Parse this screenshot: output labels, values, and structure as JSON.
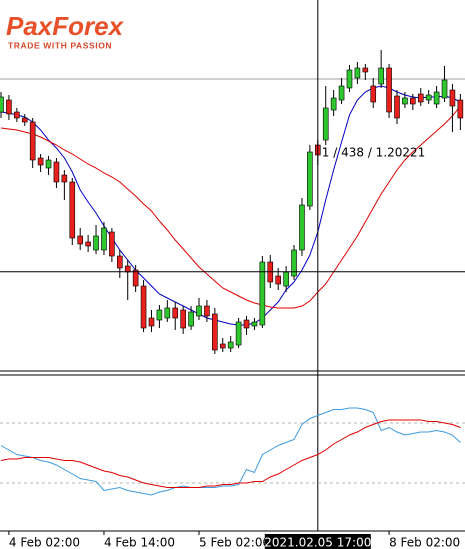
{
  "logo": {
    "text": "PaxForex",
    "tagline": "TRADE WITH PASSION"
  },
  "chart_data": [
    {
      "type": "candlestick",
      "categories": [
        null,
        "4 Feb 02:00",
        null,
        null,
        null,
        null,
        null,
        null,
        null,
        null,
        null,
        null,
        null,
        "4 Feb 14:00",
        null,
        null,
        null,
        null,
        null,
        null,
        null,
        null,
        null,
        null,
        null,
        "5 Feb 02:00",
        null,
        null,
        null,
        null,
        null,
        null,
        null,
        null,
        null,
        null,
        null,
        null,
        null,
        null,
        "2021.02.05 17:00",
        null,
        null,
        null,
        null,
        null,
        null,
        null,
        null,
        "8 Feb 02:00",
        null,
        null,
        null,
        null,
        null,
        null,
        null,
        null,
        null
      ],
      "open": [
        1.2102,
        1.2108,
        1.2102,
        1.2099,
        1.2097,
        1.2079,
        1.2074,
        1.2077,
        1.20705,
        1.2067,
        1.204,
        1.2037,
        1.2033,
        1.2033,
        1.2042,
        1.203,
        1.2025,
        1.2023,
        1.2015,
        1.1999,
        1.1998,
        1.1999,
        1.2004,
        1.2003,
        1.1995,
        1.2,
        1.2005,
        1.2001,
        1.1986,
        1.1984,
        1.19855,
        1.1998,
        1.1995,
        1.19955,
        1.2027,
        1.202,
        1.2015,
        1.202,
        1.2033,
        1.2055,
        1.20855,
        1.2088,
        1.2103,
        1.2108,
        1.2114,
        1.2119,
        1.2124,
        1.2115,
        1.2116,
        1.2124,
        1.211,
        1.2106,
        1.2109,
        1.2111,
        1.2108,
        1.2106,
        1.2109,
        1.2113,
        1.2108
      ],
      "high": [
        1.2112,
        1.21105,
        1.2104,
        1.2101,
        1.2099,
        1.2081,
        1.208,
        1.2079,
        1.2073,
        1.2069,
        1.2044,
        1.20405,
        1.20455,
        1.2047,
        1.2044,
        1.2033,
        1.2028,
        1.20255,
        1.2018,
        1.2003,
        1.20055,
        1.2008,
        1.2007,
        1.2005,
        1.2005,
        1.2009,
        1.2008,
        1.2004,
        1.1989,
        1.199,
        1.1999,
        1.2,
        1.1999,
        1.203,
        1.20305,
        1.2024,
        1.2025,
        1.20355,
        1.2059,
        1.20855,
        1.2088,
        1.2115,
        1.2113,
        1.2119,
        1.21255,
        1.2127,
        1.2126,
        1.2119,
        1.2133,
        1.2126,
        1.2113,
        1.2112,
        1.2111,
        1.2114,
        1.2113,
        1.2115,
        1.2125,
        1.2116,
        1.2111
      ],
      "low": [
        1.2099,
        1.2098,
        1.2097,
        1.2095,
        1.2074,
        1.2072,
        1.20705,
        1.2064,
        1.2058,
        1.20355,
        1.2033,
        1.2032,
        1.2031,
        1.20305,
        1.2027,
        1.2019,
        1.2008,
        1.2012,
        1.1992,
        1.1992,
        1.1994,
        1.1997,
        1.1993,
        1.1991,
        1.1993,
        1.1998,
        1.1997,
        1.1981,
        1.1982,
        1.1982,
        1.1984,
        1.19905,
        1.1993,
        1.1994,
        1.2014,
        1.2013,
        1.2012,
        1.2018,
        1.203,
        1.2053,
        1.20755,
        1.20855,
        1.21,
        1.2106,
        1.2112,
        1.2116,
        1.2118,
        1.2104,
        1.2114,
        1.2099,
        1.2096,
        1.2104,
        1.2103,
        1.2105,
        1.2106,
        1.2104,
        1.2107,
        1.2092,
        1.2093
      ],
      "close": [
        1.21095,
        1.2101,
        1.2099,
        1.2097,
        1.2078,
        1.20755,
        1.2078,
        1.2067,
        1.2067,
        1.2039,
        1.2036,
        1.2035,
        1.204,
        1.2044,
        1.203,
        1.2024,
        1.2022,
        1.2015,
        1.1994,
        1.1995,
        1.2003,
        1.2004,
        1.1999,
        1.1994,
        1.2002,
        1.2005,
        1.2,
        1.1983,
        1.1984,
        1.1987,
        1.1997,
        1.1994,
        1.1997,
        1.2027,
        1.2017,
        1.2016,
        1.2022,
        1.2033,
        1.20555,
        1.2082,
        1.20805,
        1.2104,
        1.2109,
        1.2115,
        1.2123,
        1.2124,
        1.2122,
        1.2107,
        1.2124,
        1.2102,
        1.2099,
        1.2109,
        1.2106,
        1.2107,
        1.21105,
        1.2112,
        1.2118,
        1.2105,
        1.2099
      ],
      "up_color": "#2ec72e",
      "down_color": "#e8201e",
      "wick_color": "#000000",
      "series": [
        {
          "color": "#0000c8",
          "values": [
            1.2102,
            1.21015,
            1.21005,
            1.20995,
            1.2097,
            1.2093,
            1.2088,
            1.2084,
            1.2079,
            1.2072,
            1.2063,
            1.2057,
            1.20515,
            1.2045,
            1.2039,
            1.2033,
            1.2028,
            1.2023,
            1.2019,
            1.2015,
            1.2011,
            1.2009,
            1.2007,
            1.2005,
            1.2003,
            1.2001,
            1.1999,
            1.1998,
            1.1997,
            1.1996,
            1.19955,
            1.19955,
            1.19965,
            1.1999,
            1.2003,
            1.2007,
            1.2013,
            1.2017,
            1.2023,
            1.20305,
            1.2042,
            1.2058,
            1.2073,
            1.2087,
            1.21005,
            1.2108,
            1.2112,
            1.2114,
            1.2115,
            1.2114,
            1.2112,
            1.21105,
            1.21095,
            1.2109,
            1.21095,
            1.21095,
            1.211,
            1.2109,
            1.2107
          ]
        },
        {
          "color": "#e00000",
          "values": [
            1.2094,
            1.20935,
            1.2093,
            1.2092,
            1.2091,
            1.20895,
            1.20875,
            1.20855,
            1.2083,
            1.2081,
            1.20785,
            1.2076,
            1.2074,
            1.20715,
            1.20695,
            1.2067,
            1.20635,
            1.206,
            1.2056,
            1.20525,
            1.20475,
            1.2043,
            1.2038,
            1.20335,
            1.2029,
            1.20245,
            1.2021,
            1.20175,
            1.2014,
            1.2012,
            1.201,
            1.2008,
            1.20065,
            1.20055,
            1.20045,
            1.2004,
            1.2004,
            1.2004,
            1.2005,
            1.20075,
            1.2012,
            1.2016,
            1.2022,
            1.2028,
            1.2034,
            1.204,
            1.2047,
            1.2054,
            1.2061,
            1.2067,
            1.2073,
            1.2078,
            1.2082,
            1.20855,
            1.2089,
            1.20925,
            1.2096,
            1.21,
            1.2105
          ]
        }
      ],
      "ylim": [
        1.1973,
        1.2158
      ],
      "price_line": 1.21185,
      "price_line_color": "#a0a0a0",
      "crosshair": {
        "category": "2021.02.05 17:00",
        "value": 1.20221,
        "label": "1 / 438 / 1.20221"
      }
    },
    {
      "type": "line",
      "series": [
        {
          "color": "#3d9be0",
          "values": [
            55,
            52,
            49,
            48,
            47,
            45,
            44,
            42,
            39,
            36,
            33,
            32,
            31,
            25,
            26,
            27,
            25,
            24,
            23,
            22,
            24,
            25,
            27,
            28,
            27,
            27,
            27,
            27,
            28,
            28,
            29,
            39,
            37,
            49,
            52,
            55,
            57,
            59,
            69,
            73,
            75,
            77,
            79,
            79,
            80,
            80,
            79,
            77,
            65,
            67,
            64,
            62,
            63,
            64,
            64,
            65,
            64,
            62,
            57
          ]
        },
        {
          "color": "#e00000",
          "values": [
            45,
            46,
            46,
            47,
            47,
            47,
            47,
            46,
            45,
            45,
            44,
            42,
            40,
            38,
            37,
            35,
            34,
            32,
            30,
            29,
            28,
            27,
            27,
            27,
            27,
            27,
            28,
            28,
            29,
            29,
            30,
            30,
            31,
            31,
            34,
            36,
            39,
            42,
            45,
            47,
            49,
            52,
            56,
            59,
            62,
            64,
            67,
            69,
            71,
            72,
            72,
            72,
            72,
            72,
            71,
            71,
            70,
            69,
            67
          ]
        }
      ],
      "ylim": [
        0,
        100
      ],
      "levels": [
        70,
        30
      ],
      "level_color": "#b4b4b4"
    }
  ]
}
